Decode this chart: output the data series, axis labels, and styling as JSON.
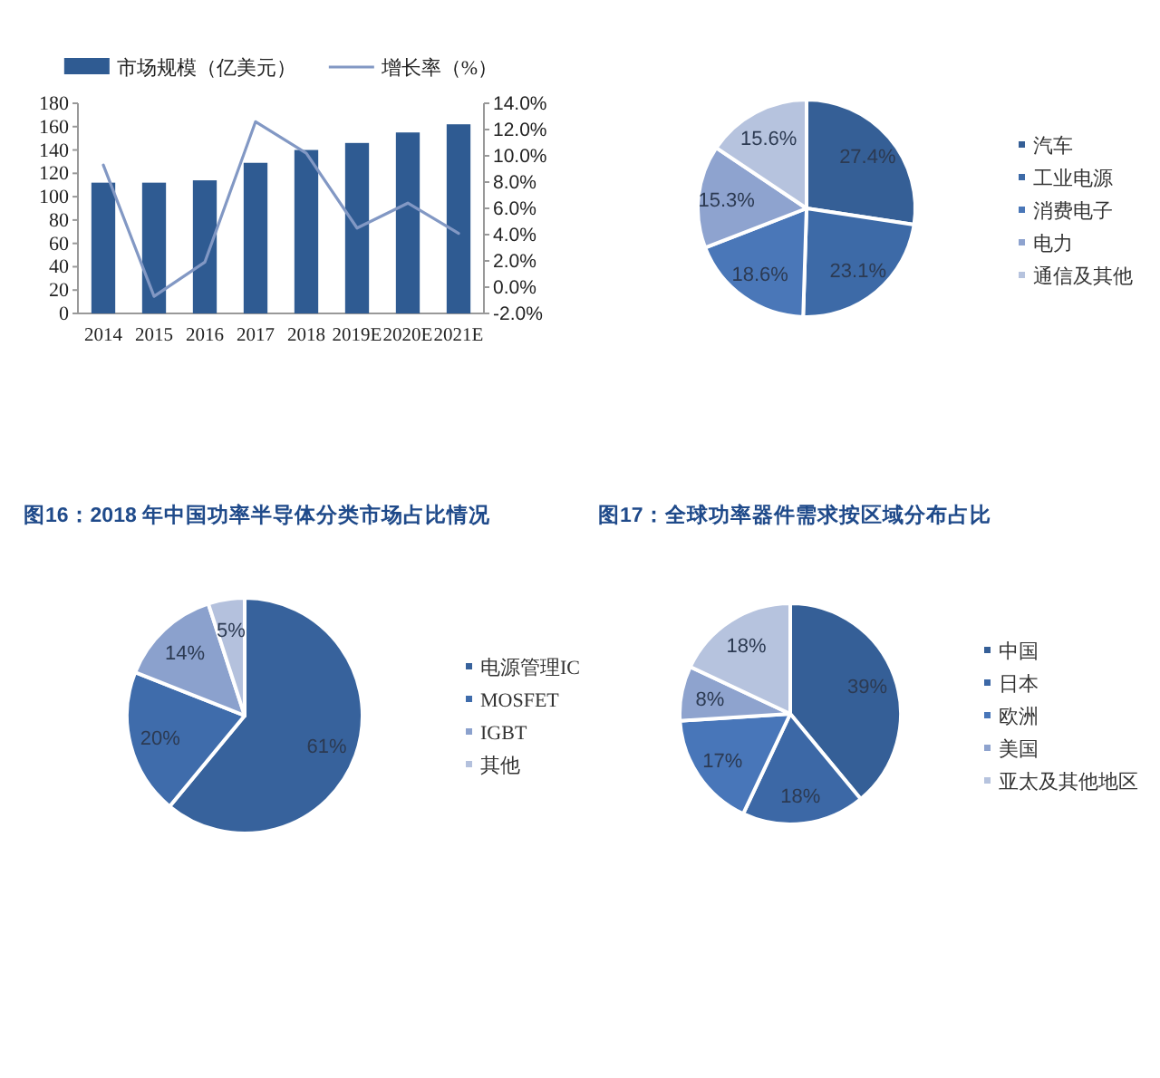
{
  "chart_data": [
    {
      "type": "bar",
      "categories": [
        "2014",
        "2015",
        "2016",
        "2017",
        "2018",
        "2019E",
        "2020E",
        "2021E"
      ],
      "series": [
        {
          "name": "市场规模（亿美元）",
          "color": "#2f5b92",
          "values": [
            112,
            112,
            114,
            129,
            140,
            146,
            155,
            162
          ]
        },
        {
          "name": "增长率（%）",
          "type": "line",
          "axis": "y2",
          "color": "#8298c4",
          "values": [
            9.3,
            -0.7,
            1.9,
            12.6,
            10.2,
            4.5,
            6.4,
            4.1
          ]
        }
      ],
      "ylim": [
        0,
        180
      ],
      "yticks": [
        0,
        20,
        40,
        60,
        80,
        100,
        120,
        140,
        160,
        180
      ],
      "y2lim": [
        -2,
        14
      ],
      "y2ticks": [
        {
          "value": -2,
          "label": "-2.0%"
        },
        {
          "value": 0,
          "label": "0.0%"
        },
        {
          "value": 2,
          "label": "2.0%"
        },
        {
          "value": 4,
          "label": "4.0%"
        },
        {
          "value": 6,
          "label": "6.0%"
        },
        {
          "value": 8,
          "label": "8.0%"
        },
        {
          "value": 10,
          "label": "10.0%"
        },
        {
          "value": 12,
          "label": "12.0%"
        },
        {
          "value": 14,
          "label": "14.0%"
        }
      ],
      "legend": "top"
    },
    {
      "type": "pie",
      "categories": [
        "汽车",
        "工业电源",
        "消费电子",
        "电力",
        "通信及其他"
      ],
      "values": [
        27.4,
        23.1,
        18.6,
        15.3,
        15.6
      ],
      "colors": [
        "#355f96",
        "#3d6aa7",
        "#4a77b8",
        "#8ea3cf",
        "#b6c3de"
      ],
      "value_labels": [
        "27.4%",
        "23.1%",
        "18.6%",
        "15.3%",
        "15.6%"
      ],
      "legend": "right"
    },
    {
      "type": "pie",
      "title": "图16：2018 年中国功率半导体分类市场占比情况",
      "categories": [
        "电源管理IC",
        "MOSFET",
        "IGBT",
        "其他"
      ],
      "values": [
        61,
        20,
        14,
        5
      ],
      "colors": [
        "#37629c",
        "#3f6cab",
        "#8ba1cd",
        "#b4c1dd"
      ],
      "value_labels": [
        "61%",
        "20%",
        "14%",
        "5%"
      ],
      "legend": "right"
    },
    {
      "type": "pie",
      "title": "图17：全球功率器件需求按区域分布占比",
      "categories": [
        "中国",
        "日本",
        "欧洲",
        "美国",
        "亚太及其他地区"
      ],
      "values": [
        39,
        18,
        17,
        8,
        18
      ],
      "colors": [
        "#355f97",
        "#3c68a6",
        "#4876b9",
        "#8ea3ce",
        "#b6c3de"
      ],
      "value_labels": [
        "39%",
        "18%",
        "17%",
        "8%",
        "18%"
      ],
      "legend": "right"
    }
  ]
}
